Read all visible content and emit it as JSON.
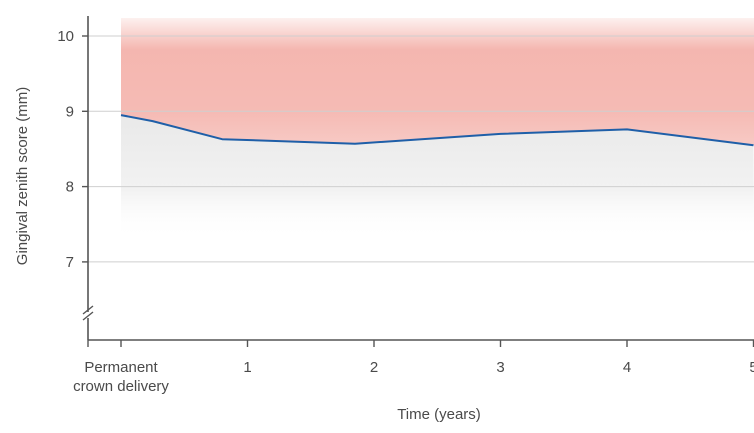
{
  "chart_data": {
    "type": "line",
    "xlabel": "Time (years)",
    "ylabel": "Gingival zenith score (mm)",
    "x_tick_labels": [
      {
        "x": 0,
        "lines": [
          "Permanent",
          "crown delivery"
        ]
      },
      {
        "x": 1,
        "lines": [
          "1"
        ]
      },
      {
        "x": 2,
        "lines": [
          "2"
        ]
      },
      {
        "x": 3,
        "lines": [
          "3"
        ]
      },
      {
        "x": 4,
        "lines": [
          "4"
        ]
      },
      {
        "x": 5,
        "lines": [
          "5"
        ]
      }
    ],
    "y_ticks": [
      7,
      8,
      9,
      10
    ],
    "xlim": [
      -0.3,
      5
    ],
    "ylim": [
      6.3,
      10.3
    ],
    "axis_break": "y",
    "grid": true,
    "series": [
      {
        "color": "#1f5fa8",
        "x": [
          0,
          0.25,
          0.8,
          1.85,
          3.0,
          4.0,
          5.0
        ],
        "y": [
          8.95,
          8.87,
          8.63,
          8.57,
          8.7,
          8.76,
          8.55
        ]
      }
    ],
    "band_color": "#f19e95"
  }
}
